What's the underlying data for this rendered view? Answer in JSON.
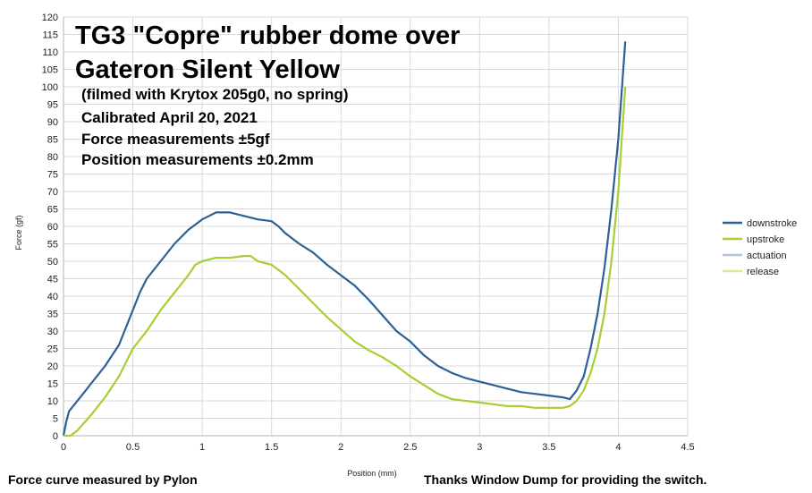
{
  "chart_data": {
    "type": "line",
    "annotations": [
      "TG3 \"Copre\" rubber dome over",
      "Gateron Silent Yellow",
      "(filmed with Krytox 205g0, no spring)",
      "Calibrated April 20, 2021",
      "Force measurements ±5gf",
      "Position measurements ±0.2mm"
    ],
    "xlabel": "Position (mm)",
    "ylabel": "Force (gf)",
    "xlim": [
      0,
      4.5
    ],
    "ylim": [
      0,
      120
    ],
    "xticks": [
      "0",
      "0.5",
      "1",
      "1.5",
      "2",
      "2.5",
      "3",
      "3.5",
      "4",
      "4.5"
    ],
    "yticks": [
      "0",
      "5",
      "10",
      "15",
      "20",
      "25",
      "30",
      "35",
      "40",
      "45",
      "50",
      "55",
      "60",
      "65",
      "70",
      "75",
      "80",
      "85",
      "90",
      "95",
      "100",
      "105",
      "110",
      "115",
      "120"
    ],
    "grid": true,
    "legend_position": "right",
    "series": [
      {
        "name": "downstroke",
        "color": "#2e5f96",
        "points": [
          [
            0.0,
            0
          ],
          [
            0.02,
            4
          ],
          [
            0.04,
            7
          ],
          [
            0.08,
            9
          ],
          [
            0.15,
            12.5
          ],
          [
            0.2,
            15
          ],
          [
            0.3,
            20
          ],
          [
            0.4,
            26
          ],
          [
            0.45,
            31
          ],
          [
            0.5,
            36
          ],
          [
            0.55,
            41
          ],
          [
            0.6,
            45
          ],
          [
            0.7,
            50
          ],
          [
            0.8,
            55
          ],
          [
            0.9,
            59
          ],
          [
            1.0,
            62
          ],
          [
            1.05,
            63
          ],
          [
            1.1,
            64
          ],
          [
            1.15,
            64
          ],
          [
            1.2,
            64
          ],
          [
            1.3,
            63
          ],
          [
            1.4,
            62
          ],
          [
            1.5,
            61.5
          ],
          [
            1.55,
            60
          ],
          [
            1.6,
            58
          ],
          [
            1.7,
            55
          ],
          [
            1.8,
            52.5
          ],
          [
            1.9,
            49
          ],
          [
            2.0,
            46
          ],
          [
            2.1,
            43
          ],
          [
            2.2,
            39
          ],
          [
            2.3,
            34.5
          ],
          [
            2.4,
            30
          ],
          [
            2.5,
            27
          ],
          [
            2.6,
            23
          ],
          [
            2.7,
            20
          ],
          [
            2.8,
            18
          ],
          [
            2.9,
            16.5
          ],
          [
            3.0,
            15.5
          ],
          [
            3.1,
            14.5
          ],
          [
            3.2,
            13.5
          ],
          [
            3.3,
            12.5
          ],
          [
            3.4,
            12
          ],
          [
            3.5,
            11.5
          ],
          [
            3.6,
            11
          ],
          [
            3.65,
            10.5
          ],
          [
            3.7,
            13
          ],
          [
            3.75,
            17
          ],
          [
            3.8,
            25
          ],
          [
            3.85,
            35
          ],
          [
            3.9,
            48
          ],
          [
            3.95,
            65
          ],
          [
            4.0,
            85
          ],
          [
            4.05,
            113
          ]
        ]
      },
      {
        "name": "upstroke",
        "color": "#a5cf34",
        "points": [
          [
            0.0,
            0
          ],
          [
            0.05,
            0
          ],
          [
            0.1,
            1.5
          ],
          [
            0.2,
            6
          ],
          [
            0.3,
            11
          ],
          [
            0.4,
            17
          ],
          [
            0.5,
            25
          ],
          [
            0.6,
            30
          ],
          [
            0.7,
            36
          ],
          [
            0.8,
            41
          ],
          [
            0.9,
            46
          ],
          [
            0.95,
            49
          ],
          [
            1.0,
            50
          ],
          [
            1.1,
            51
          ],
          [
            1.2,
            51
          ],
          [
            1.3,
            51.5
          ],
          [
            1.35,
            51.5
          ],
          [
            1.4,
            50
          ],
          [
            1.5,
            49
          ],
          [
            1.6,
            46
          ],
          [
            1.7,
            42
          ],
          [
            1.8,
            38
          ],
          [
            1.9,
            34
          ],
          [
            2.0,
            30.5
          ],
          [
            2.1,
            27
          ],
          [
            2.2,
            24.5
          ],
          [
            2.3,
            22.5
          ],
          [
            2.4,
            20
          ],
          [
            2.5,
            17
          ],
          [
            2.6,
            14.5
          ],
          [
            2.7,
            12
          ],
          [
            2.8,
            10.5
          ],
          [
            2.9,
            10
          ],
          [
            3.0,
            9.5
          ],
          [
            3.1,
            9
          ],
          [
            3.2,
            8.5
          ],
          [
            3.3,
            8.5
          ],
          [
            3.4,
            8
          ],
          [
            3.5,
            8
          ],
          [
            3.6,
            8
          ],
          [
            3.65,
            8.5
          ],
          [
            3.7,
            10
          ],
          [
            3.75,
            13
          ],
          [
            3.8,
            18
          ],
          [
            3.85,
            25
          ],
          [
            3.9,
            35
          ],
          [
            3.95,
            50
          ],
          [
            4.0,
            70
          ],
          [
            4.05,
            100
          ]
        ]
      },
      {
        "name": "actuation",
        "color": "#b0c4de",
        "points": []
      },
      {
        "name": "release",
        "color": "#d4ed91",
        "points": []
      }
    ]
  },
  "footer": {
    "left": "Force curve measured by Pylon",
    "right": "Thanks Window Dump for providing the switch."
  }
}
